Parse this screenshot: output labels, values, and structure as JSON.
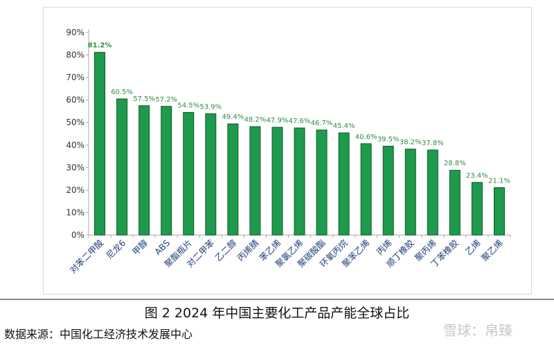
{
  "chart_data": {
    "type": "bar",
    "categories": [
      "对苯二甲酸",
      "尼龙6",
      "甲醇",
      "ABS",
      "聚酯瓶片",
      "对二甲苯",
      "乙二醇",
      "丙烯腈",
      "苯乙烯",
      "聚氯乙烯",
      "聚碳酸酯",
      "环氧丙烷",
      "聚苯乙烯",
      "丙烯",
      "顺丁橡胶",
      "聚丙烯",
      "丁苯橡胶",
      "乙烯",
      "聚乙烯"
    ],
    "values": [
      81.2,
      60.5,
      57.5,
      57.2,
      54.5,
      53.9,
      49.4,
      48.2,
      47.9,
      47.6,
      46.7,
      45.4,
      40.6,
      39.5,
      38.2,
      37.8,
      28.8,
      23.4,
      21.1
    ],
    "data_labels": [
      "81.2%",
      "60.5%",
      "57.5%",
      "57.2%",
      "54.5%",
      "53.9%",
      "49.4%",
      "48.2%",
      "47.9%",
      "47.6%",
      "46.7%",
      "45.4%",
      "40.6%",
      "39.5%",
      "38.2%",
      "37.8%",
      "28.8%",
      "23.4%",
      "21.1%"
    ],
    "yticks": [
      "0%",
      "10%",
      "20%",
      "30%",
      "40%",
      "50%",
      "60%",
      "70%",
      "80%",
      "90%"
    ],
    "ylim": [
      0,
      90
    ],
    "grid": false,
    "bar_color": "#1e9a4c",
    "label_color": "#2e8b4a",
    "title": "图 2 2024 年中国主要化工产品产能全球占比"
  },
  "source": "数据来源：中国化工经济技术发展中心",
  "watermark": "雪球：帛臻"
}
